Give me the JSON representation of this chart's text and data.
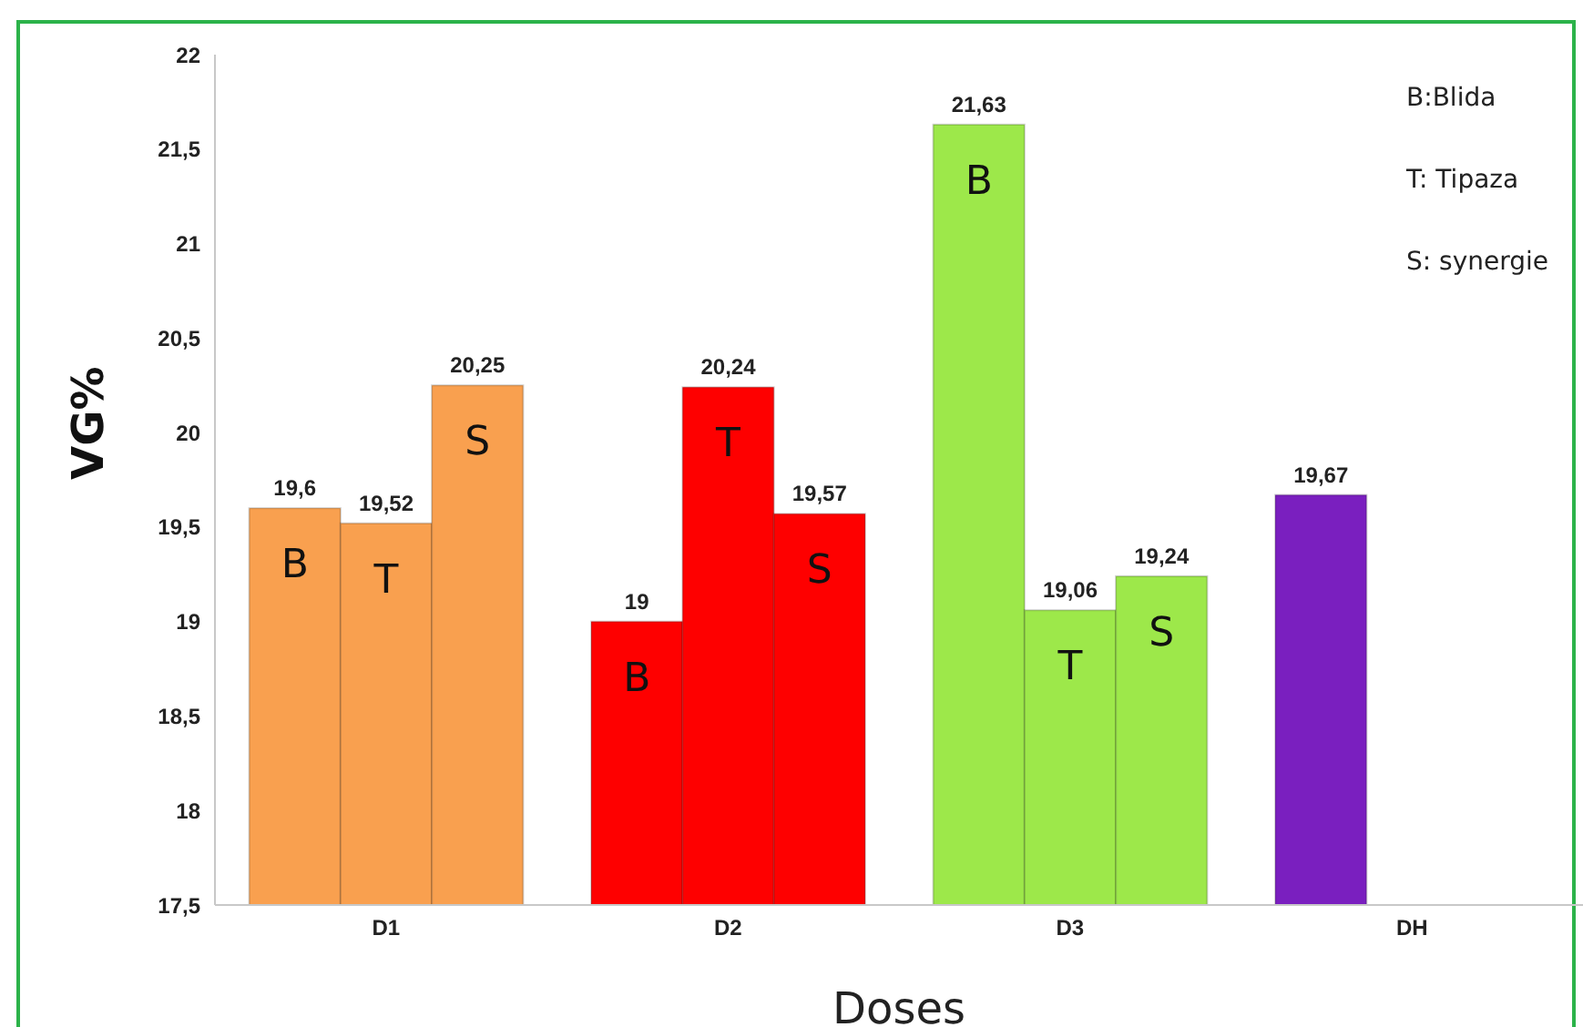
{
  "chart_data": {
    "type": "bar",
    "xlabel": "Doses",
    "ylabel": "VG%",
    "categories": [
      "D1",
      "D2",
      "D3",
      "DH"
    ],
    "series": [
      {
        "name": "B",
        "colors": [
          "#f9a04f",
          "#fe0000",
          "#9de84a",
          null
        ],
        "values": [
          19.6,
          19,
          21.63,
          null
        ],
        "value_labels": [
          "19,6",
          "19",
          "21,63",
          null
        ]
      },
      {
        "name": "T",
        "colors": [
          "#f9a04f",
          "#fe0000",
          "#9de84a",
          null
        ],
        "values": [
          19.52,
          20.24,
          19.06,
          null
        ],
        "value_labels": [
          "19,52",
          "20,24",
          "19,06",
          null
        ]
      },
      {
        "name": "S",
        "colors": [
          "#f9a04f",
          "#fe0000",
          "#9de84a",
          null
        ],
        "values": [
          20.25,
          19.57,
          19.24,
          null
        ],
        "value_labels": [
          "20,25",
          "19,57",
          "19,24",
          null
        ]
      },
      {
        "color": "#7a1fbf",
        "values": [
          null,
          null,
          null,
          19.67
        ],
        "value_labels": [
          null,
          null,
          null,
          "19,67"
        ]
      }
    ],
    "ylim": [
      17.5,
      22
    ],
    "yticks": [
      {
        "value": 17.5,
        "label": "17,5"
      },
      18,
      {
        "value": 18.5,
        "label": "18,5"
      },
      19,
      {
        "value": 19.5,
        "label": "19,5"
      },
      20,
      {
        "value": 20.5,
        "label": "20,5"
      },
      21,
      {
        "value": 21.5,
        "label": "21,5"
      },
      22
    ],
    "annotations": [
      "B:Blida",
      "T: Tipaza",
      "S: synergie"
    ]
  }
}
